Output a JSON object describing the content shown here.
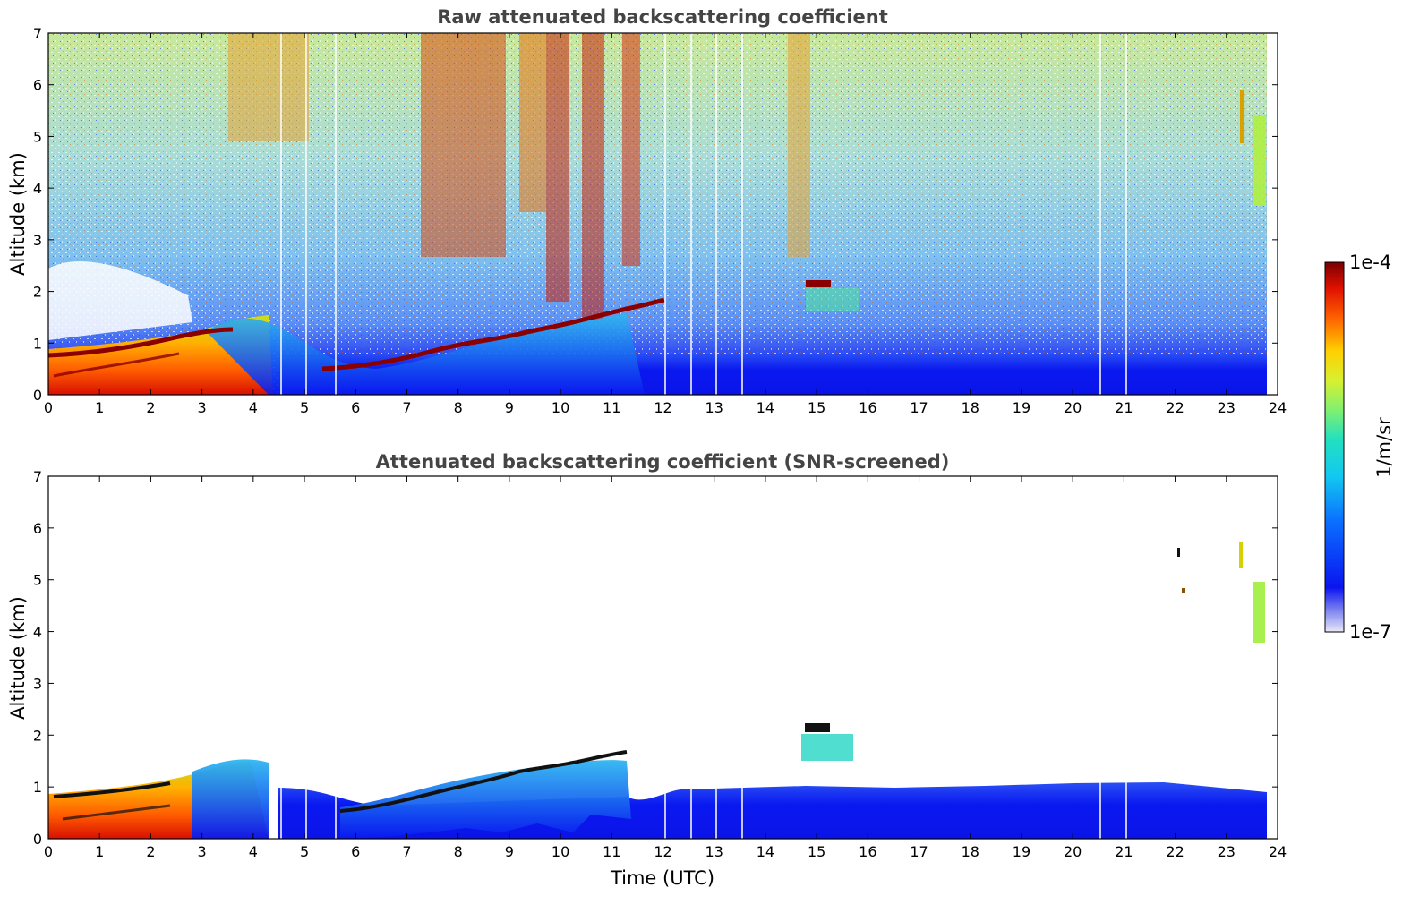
{
  "chart_data": [
    {
      "type": "heatmap",
      "title": "Raw attenuated backscattering coefficient",
      "xlabel": "",
      "ylabel": "Altitude (km)",
      "xlim": [
        0,
        24
      ],
      "ylim": [
        0,
        7
      ],
      "xticks": [
        "0",
        "1",
        "2",
        "3",
        "4",
        "5",
        "6",
        "7",
        "8",
        "9",
        "10",
        "11",
        "12",
        "13",
        "14",
        "15",
        "16",
        "17",
        "18",
        "19",
        "20",
        "21",
        "22",
        "23",
        "24"
      ],
      "yticks": [
        "0",
        "1",
        "2",
        "3",
        "4",
        "5",
        "6",
        "7"
      ],
      "layer_top_km": [
        {
          "t": 0,
          "z": 0.85
        },
        {
          "t": 1,
          "z": 0.9
        },
        {
          "t": 2,
          "z": 1.0
        },
        {
          "t": 3,
          "z": 1.25
        },
        {
          "t": 4,
          "z": 1.4
        },
        {
          "t": 4.5,
          "z": 1.2
        },
        {
          "t": 5,
          "z": 0.7
        },
        {
          "t": 5.5,
          "z": 0.5
        },
        {
          "t": 6,
          "z": 0.5
        },
        {
          "t": 7,
          "z": 0.7
        },
        {
          "t": 8,
          "z": 1.0
        },
        {
          "t": 9,
          "z": 1.15
        },
        {
          "t": 10,
          "z": 1.35
        },
        {
          "t": 10.7,
          "z": 1.5
        },
        {
          "t": 11.3,
          "z": 1.6
        },
        {
          "t": 12,
          "z": 1.8
        }
      ],
      "elevated_layers": [
        {
          "t_start": 14.8,
          "t_end": 15.3,
          "z": 2.1
        },
        {
          "t_start": 23.3,
          "t_end": 23.8,
          "z": 4.5
        }
      ],
      "gaps_utc": [
        4.5,
        5.0,
        5.6,
        12.0,
        12.5,
        13.0,
        13.5,
        20.5,
        21.0
      ]
    },
    {
      "type": "heatmap",
      "title": "Attenuated backscattering coefficient (SNR-screened)",
      "xlabel": "Time (UTC)",
      "ylabel": "Altitude (km)",
      "xlim": [
        0,
        24
      ],
      "ylim": [
        0,
        7
      ],
      "xticks": [
        "0",
        "1",
        "2",
        "3",
        "4",
        "5",
        "6",
        "7",
        "8",
        "9",
        "10",
        "11",
        "12",
        "13",
        "14",
        "15",
        "16",
        "17",
        "18",
        "19",
        "20",
        "21",
        "22",
        "23",
        "24"
      ],
      "yticks": [
        "0",
        "1",
        "2",
        "3",
        "4",
        "5",
        "6",
        "7"
      ],
      "boundary_layer_top_km": [
        {
          "t": 0,
          "z": 0.85
        },
        {
          "t": 2,
          "z": 1.0
        },
        {
          "t": 3,
          "z": 1.3
        },
        {
          "t": 4,
          "z": 1.4
        },
        {
          "t": 4.5,
          "z": 1.1
        },
        {
          "t": 5,
          "z": 1.0
        },
        {
          "t": 6,
          "z": 0.55
        },
        {
          "t": 8,
          "z": 1.0
        },
        {
          "t": 9,
          "z": 1.2
        },
        {
          "t": 10,
          "z": 1.3
        },
        {
          "t": 11,
          "z": 1.5
        },
        {
          "t": 12,
          "z": 1.0
        },
        {
          "t": 14,
          "z": 0.95
        },
        {
          "t": 16,
          "z": 1.0
        },
        {
          "t": 18,
          "z": 1.0
        },
        {
          "t": 20,
          "z": 1.05
        },
        {
          "t": 22,
          "z": 1.0
        },
        {
          "t": 23.8,
          "z": 0.8
        }
      ],
      "elevated_layers": [
        {
          "t_start": 14.8,
          "t_end": 15.8,
          "z": 1.9
        },
        {
          "t_start": 22.1,
          "t_end": 22.2,
          "z": 5.55
        },
        {
          "t_start": 23.3,
          "t_end": 23.8,
          "z": 4.4
        }
      ]
    }
  ],
  "colorbar": {
    "label": "1/m/sr",
    "max_label": "1e-4",
    "min_label": "1e-7",
    "colormap": "jet"
  },
  "colors": {
    "low": "#0a14f0",
    "mid": "#22d4d4",
    "high": "#e81a0a",
    "max": "#7a0000"
  }
}
